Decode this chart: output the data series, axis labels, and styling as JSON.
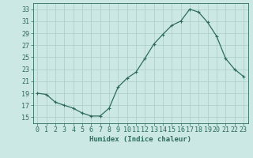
{
  "x": [
    0,
    1,
    2,
    3,
    4,
    5,
    6,
    7,
    8,
    9,
    10,
    11,
    12,
    13,
    14,
    15,
    16,
    17,
    18,
    19,
    20,
    21,
    22,
    23
  ],
  "y": [
    19,
    18.8,
    17.5,
    17,
    16.5,
    15.7,
    15.2,
    15.2,
    16.5,
    20.0,
    21.5,
    22.5,
    24.8,
    27.2,
    28.8,
    30.3,
    31.0,
    33.0,
    32.5,
    30.8,
    28.5,
    24.8,
    23.0,
    21.8
  ],
  "line_color": "#2e6b5e",
  "marker": "+",
  "marker_size": 3,
  "marker_linewidth": 0.8,
  "bg_color": "#cce8e4",
  "grid_color": "#aaccc8",
  "xlabel": "Humidex (Indice chaleur)",
  "xlim": [
    -0.5,
    23.5
  ],
  "ylim": [
    14,
    34
  ],
  "yticks": [
    15,
    17,
    19,
    21,
    23,
    25,
    27,
    29,
    31,
    33
  ],
  "xticks": [
    0,
    1,
    2,
    3,
    4,
    5,
    6,
    7,
    8,
    9,
    10,
    11,
    12,
    13,
    14,
    15,
    16,
    17,
    18,
    19,
    20,
    21,
    22,
    23
  ],
  "xlabel_fontsize": 6.5,
  "tick_fontsize": 6.0,
  "line_width": 0.9
}
